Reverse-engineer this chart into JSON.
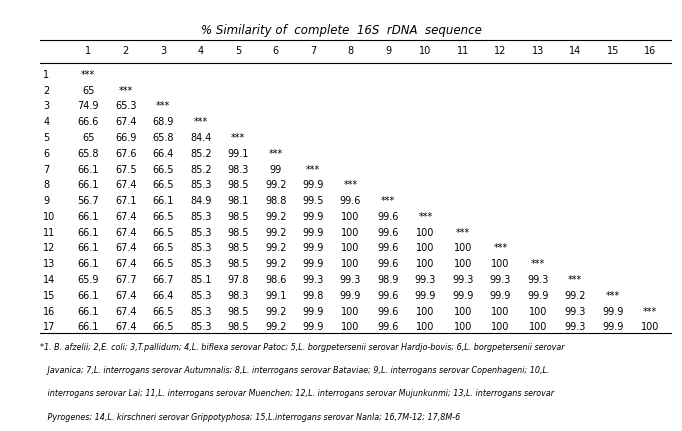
{
  "title": "% Similarity of  complete  16S  rDNA  sequence",
  "col_headers": [
    "1",
    "2",
    "3",
    "4",
    "5",
    "6",
    "7",
    "8",
    "9",
    "10",
    "11",
    "12",
    "13",
    "14",
    "15",
    "16"
  ],
  "row_headers": [
    "1",
    "2",
    "3",
    "4",
    "5",
    "6",
    "7",
    "8",
    "9",
    "10",
    "11",
    "12",
    "13",
    "14",
    "15",
    "16",
    "17"
  ],
  "matrix": [
    [
      "***",
      "",
      "",
      "",
      "",
      "",
      "",
      "",
      "",
      "",
      "",
      "",
      "",
      "",
      "",
      ""
    ],
    [
      "65",
      "***",
      "",
      "",
      "",
      "",
      "",
      "",
      "",
      "",
      "",
      "",
      "",
      "",
      "",
      ""
    ],
    [
      "74.9",
      "65.3",
      "***",
      "",
      "",
      "",
      "",
      "",
      "",
      "",
      "",
      "",
      "",
      "",
      "",
      ""
    ],
    [
      "66.6",
      "67.4",
      "68.9",
      "***",
      "",
      "",
      "",
      "",
      "",
      "",
      "",
      "",
      "",
      "",
      "",
      ""
    ],
    [
      "65",
      "66.9",
      "65.8",
      "84.4",
      "***",
      "",
      "",
      "",
      "",
      "",
      "",
      "",
      "",
      "",
      "",
      ""
    ],
    [
      "65.8",
      "67.6",
      "66.4",
      "85.2",
      "99.1",
      "***",
      "",
      "",
      "",
      "",
      "",
      "",
      "",
      "",
      "",
      ""
    ],
    [
      "66.1",
      "67.5",
      "66.5",
      "85.2",
      "98.3",
      "99",
      "***",
      "",
      "",
      "",
      "",
      "",
      "",
      "",
      "",
      ""
    ],
    [
      "66.1",
      "67.4",
      "66.5",
      "85.3",
      "98.5",
      "99.2",
      "99.9",
      "***",
      "",
      "",
      "",
      "",
      "",
      "",
      "",
      ""
    ],
    [
      "56.7",
      "67.1",
      "66.1",
      "84.9",
      "98.1",
      "98.8",
      "99.5",
      "99.6",
      "***",
      "",
      "",
      "",
      "",
      "",
      "",
      ""
    ],
    [
      "66.1",
      "67.4",
      "66.5",
      "85.3",
      "98.5",
      "99.2",
      "99.9",
      "100",
      "99.6",
      "***",
      "",
      "",
      "",
      "",
      "",
      ""
    ],
    [
      "66.1",
      "67.4",
      "66.5",
      "85.3",
      "98.5",
      "99.2",
      "99.9",
      "100",
      "99.6",
      "100",
      "***",
      "",
      "",
      "",
      "",
      ""
    ],
    [
      "66.1",
      "67.4",
      "66.5",
      "85.3",
      "98.5",
      "99.2",
      "99.9",
      "100",
      "99.6",
      "100",
      "100",
      "***",
      "",
      "",
      "",
      ""
    ],
    [
      "66.1",
      "67.4",
      "66.5",
      "85.3",
      "98.5",
      "99.2",
      "99.9",
      "100",
      "99.6",
      "100",
      "100",
      "100",
      "***",
      "",
      "",
      ""
    ],
    [
      "65.9",
      "67.7",
      "66.7",
      "85.1",
      "97.8",
      "98.6",
      "99.3",
      "99.3",
      "98.9",
      "99.3",
      "99.3",
      "99.3",
      "99.3",
      "***",
      "",
      ""
    ],
    [
      "66.1",
      "67.4",
      "66.4",
      "85.3",
      "98.3",
      "99.1",
      "99.8",
      "99.9",
      "99.6",
      "99.9",
      "99.9",
      "99.9",
      "99.9",
      "99.2",
      "***",
      ""
    ],
    [
      "66.1",
      "67.4",
      "66.5",
      "85.3",
      "98.5",
      "99.2",
      "99.9",
      "100",
      "99.6",
      "100",
      "100",
      "100",
      "100",
      "99.3",
      "99.9",
      "***"
    ],
    [
      "66.1",
      "67.4",
      "66.5",
      "85.3",
      "98.5",
      "99.2",
      "99.9",
      "100",
      "99.6",
      "100",
      "100",
      "100",
      "100",
      "99.3",
      "99.9",
      "100"
    ]
  ],
  "footnote_lines": [
    "*1. B. afzelii; 2,E. coli; 3,T.pallidum; 4,L. biflexa serovar Patoc; 5,L. borgpetersenii serovar Hardjo-bovis; 6,L. borgpetersenii serovar",
    "   Javanica; 7,L. interrogans serovar Autumnalis; 8,L. interrogans serovar Bataviae; 9,L. interrogans serovar Copenhageni; 10,L.",
    "   interrogans serovar Lai; 11,L. interrogans serovar Muenchen; 12,L. interrogans serovar Mujunkunmi; 13,L. interrogans serovar",
    "   Pyrogenes; 14,L. kirschneri serovar Grippotyphosa; 15,L.interrogans serovar Nanla; 16,7M-12; 17,8M-6"
  ],
  "bg_color": "#ffffff",
  "text_color": "#000000",
  "header_bg": "#ffffff",
  "font_size": 7.0,
  "title_font_size": 8.5
}
